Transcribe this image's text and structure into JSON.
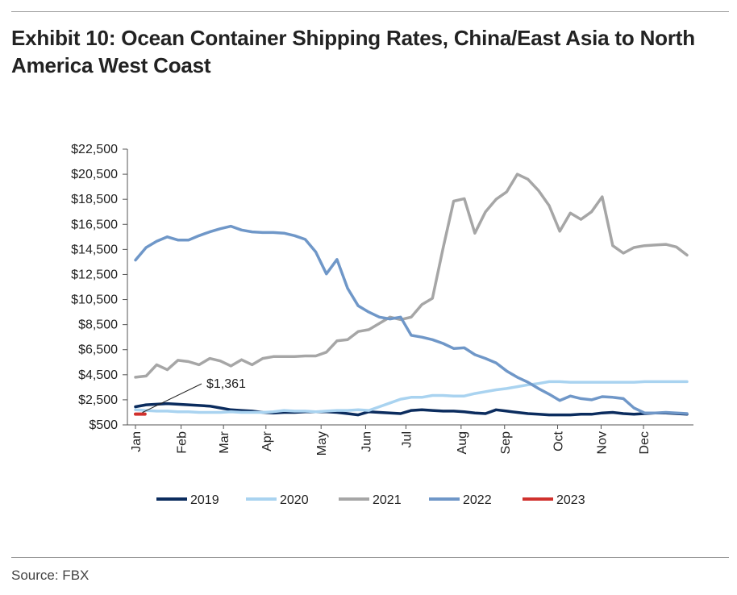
{
  "title": "Exhibit 10: Ocean Container Shipping Rates, China/East Asia to North America West Coast",
  "source": "Source: FBX",
  "chart_data": {
    "type": "line",
    "title": "Exhibit 10: Ocean Container Shipping Rates, China/East Asia to North America West Coast",
    "xlabel": "",
    "ylabel": "",
    "ylim": [
      500,
      22500
    ],
    "xlim": [
      1,
      53
    ],
    "yticks": [
      "$500",
      "$2,500",
      "$4,500",
      "$6,500",
      "$8,500",
      "$10,500",
      "$12,500",
      "$14,500",
      "$16,500",
      "$18,500",
      "$20,500",
      "$22,500"
    ],
    "ytick_values": [
      500,
      2500,
      4500,
      6500,
      8500,
      10500,
      12500,
      14500,
      16500,
      18500,
      20500,
      22500
    ],
    "xticks": [
      "Jan",
      "Feb",
      "Mar",
      "Apr",
      "May",
      "Jun",
      "Jul",
      "Aug",
      "Sep",
      "Oct",
      "Nov",
      "Dec"
    ],
    "xtick_weeks": [
      1,
      5.3,
      9.3,
      13.3,
      18.5,
      22.7,
      26.5,
      31.7,
      35.8,
      40.8,
      44.9,
      48.9
    ],
    "legend": "bottom",
    "annotation": {
      "text": "$1,361",
      "week": 1.5,
      "value": 1361
    },
    "series": [
      {
        "name": "2019",
        "color": "#0b2c5e",
        "x": [
          1,
          2,
          3,
          4,
          5,
          6,
          7,
          8,
          9,
          10,
          11,
          12,
          13,
          14,
          15,
          16,
          17,
          18,
          19,
          20,
          21,
          22,
          23,
          24,
          25,
          26,
          27,
          28,
          29,
          30,
          31,
          32,
          33,
          34,
          35,
          36,
          37,
          38,
          39,
          40,
          41,
          42,
          43,
          44,
          45,
          46,
          47,
          48,
          49,
          50,
          51,
          52,
          53
        ],
        "values": [
          1950,
          2100,
          2150,
          2200,
          2150,
          2100,
          2050,
          2000,
          1850,
          1700,
          1650,
          1600,
          1500,
          1450,
          1500,
          1500,
          1550,
          1550,
          1550,
          1500,
          1400,
          1300,
          1550,
          1500,
          1450,
          1400,
          1650,
          1700,
          1650,
          1600,
          1600,
          1550,
          1450,
          1400,
          1700,
          1600,
          1500,
          1400,
          1350,
          1300,
          1300,
          1300,
          1350,
          1350,
          1450,
          1500,
          1400,
          1350,
          1400,
          1450,
          1450,
          1400,
          1350
        ]
      },
      {
        "name": "2020",
        "color": "#a9d3f0",
        "x": [
          1,
          2,
          3,
          4,
          5,
          6,
          7,
          8,
          9,
          10,
          11,
          12,
          13,
          14,
          15,
          16,
          17,
          18,
          19,
          20,
          21,
          22,
          23,
          24,
          25,
          26,
          27,
          28,
          29,
          30,
          31,
          32,
          33,
          34,
          35,
          36,
          37,
          38,
          39,
          40,
          41,
          42,
          43,
          44,
          45,
          46,
          47,
          48,
          49,
          50,
          51,
          52,
          53
        ],
        "values": [
          1700,
          1650,
          1600,
          1600,
          1550,
          1550,
          1500,
          1500,
          1500,
          1550,
          1500,
          1500,
          1500,
          1550,
          1650,
          1600,
          1600,
          1550,
          1600,
          1650,
          1650,
          1700,
          1650,
          1950,
          2250,
          2550,
          2700,
          2700,
          2850,
          2850,
          2800,
          2800,
          3000,
          3150,
          3300,
          3400,
          3550,
          3700,
          3800,
          3950,
          3950,
          3900,
          3900,
          3900,
          3900,
          3900,
          3900,
          3900,
          3950,
          3950,
          3950,
          3950,
          3950
        ]
      },
      {
        "name": "2021",
        "color": "#a6a6a6",
        "x": [
          1,
          2,
          3,
          4,
          5,
          6,
          7,
          8,
          9,
          10,
          11,
          12,
          13,
          14,
          15,
          16,
          17,
          18,
          19,
          20,
          21,
          22,
          23,
          24,
          25,
          26,
          27,
          28,
          29,
          30,
          31,
          32,
          33,
          34,
          35,
          36,
          37,
          38,
          39,
          40,
          41,
          42,
          43,
          44,
          45,
          46,
          47,
          48,
          49,
          50,
          51,
          52,
          53
        ],
        "values": [
          4300,
          4400,
          5300,
          4900,
          5650,
          5550,
          5300,
          5800,
          5600,
          5200,
          5700,
          5300,
          5800,
          5950,
          5950,
          5950,
          6000,
          6000,
          6300,
          7200,
          7300,
          7950,
          8100,
          8600,
          9100,
          8900,
          9100,
          10100,
          10600,
          14600,
          18350,
          18550,
          15800,
          17500,
          18500,
          19100,
          20500,
          20100,
          19200,
          18000,
          15950,
          17400,
          16900,
          17500,
          18700,
          14800,
          14200,
          14650,
          14800,
          14850,
          14900,
          14700,
          14050
        ]
      },
      {
        "name": "2022",
        "color": "#6f97c8",
        "x": [
          1,
          2,
          3,
          4,
          5,
          6,
          7,
          8,
          9,
          10,
          11,
          12,
          13,
          14,
          15,
          16,
          17,
          18,
          19,
          20,
          21,
          22,
          23,
          24,
          25,
          26,
          27,
          28,
          29,
          30,
          31,
          32,
          33,
          34,
          35,
          36,
          37,
          38,
          39,
          40,
          41,
          42,
          43,
          44,
          45,
          46,
          47,
          48,
          49,
          50,
          51,
          52,
          53
        ],
        "values": [
          13650,
          14650,
          15150,
          15500,
          15250,
          15250,
          15600,
          15900,
          16150,
          16350,
          16050,
          15900,
          15850,
          15850,
          15800,
          15600,
          15300,
          14300,
          12550,
          13700,
          11400,
          10000,
          9500,
          9100,
          8950,
          9100,
          7650,
          7500,
          7300,
          7000,
          6600,
          6650,
          6100,
          5800,
          5450,
          4800,
          4300,
          3900,
          3400,
          2950,
          2450,
          2800,
          2600,
          2500,
          2750,
          2700,
          2600,
          1850,
          1450,
          1450,
          1500,
          1450,
          1400
        ]
      },
      {
        "name": "2023",
        "color": "#d0312d",
        "x": [
          1,
          1.9
        ],
        "values": [
          1361,
          1361
        ]
      }
    ]
  }
}
